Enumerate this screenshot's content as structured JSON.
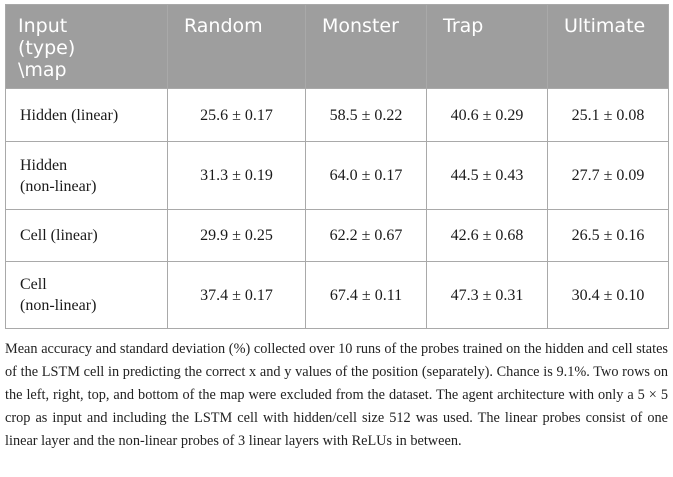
{
  "table": {
    "header": {
      "corner_lines": [
        "Input",
        "(type)",
        "\\map"
      ],
      "columns": [
        "Random",
        "Monster",
        "Trap",
        "Ultimate"
      ]
    },
    "rows": [
      {
        "label_lines": [
          "Hidden (linear)"
        ],
        "values": [
          "25.6 ± 0.17",
          "58.5 ± 0.22",
          "40.6 ± 0.29",
          "25.1 ± 0.08"
        ]
      },
      {
        "label_lines": [
          "Hidden",
          "(non-linear)"
        ],
        "values": [
          "31.3 ± 0.19",
          "64.0 ± 0.17",
          "44.5 ± 0.43",
          "27.7 ± 0.09"
        ]
      },
      {
        "label_lines": [
          "Cell (linear)"
        ],
        "values": [
          "29.9 ± 0.25",
          "62.2 ± 0.67",
          "42.6 ± 0.68",
          "26.5 ± 0.16"
        ]
      },
      {
        "label_lines": [
          "Cell",
          "(non-linear)"
        ],
        "values": [
          "37.4 ± 0.17",
          "67.4 ± 0.11",
          "47.3 ± 0.31",
          "30.4 ± 0.10"
        ]
      }
    ]
  },
  "caption": "Mean accuracy and standard deviation (%) collected over 10 runs of the probes trained on the hidden and cell states of the LSTM cell in predicting the correct x and y values of the position (separately). Chance is 9.1%. Two rows on the left, right, top, and bottom of the map were excluded from the dataset. The agent architecture with only a 5 × 5 crop as input and including the LSTM cell with hidden/cell size 512 was used. The linear probes consist of one linear layer and the non-linear probes of 3 linear layers with ReLUs in between.",
  "colors": {
    "header_bg": "#9e9e9e",
    "header_text": "#ffffff",
    "border": "#a9a9a9"
  }
}
